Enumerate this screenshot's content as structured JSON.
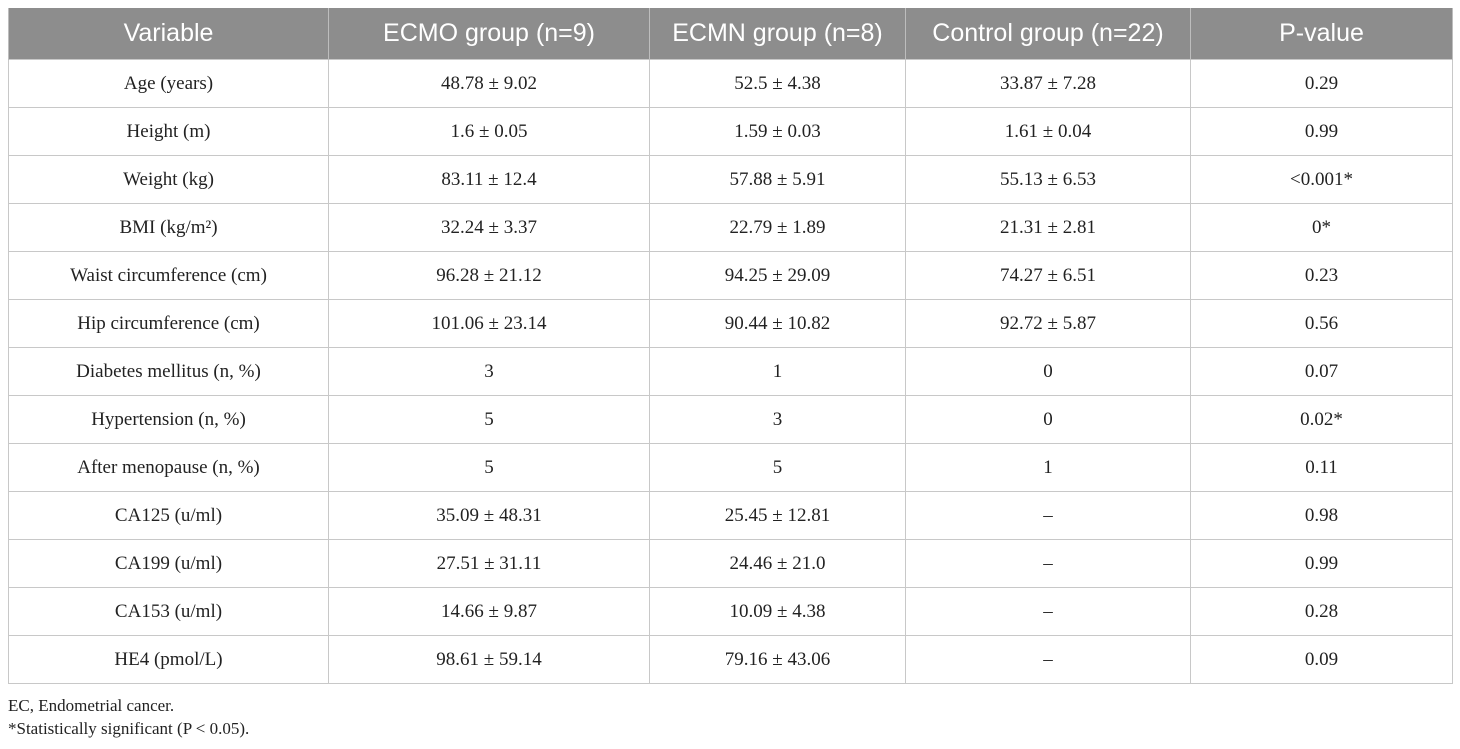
{
  "table": {
    "headers": [
      "Variable",
      "ECMO group (n=9)",
      "ECMN group (n=8)",
      "Control group (n=22)",
      "P-value"
    ],
    "rows": [
      [
        "Age (years)",
        "48.78 ± 9.02",
        "52.5 ± 4.38",
        "33.87 ± 7.28",
        "0.29"
      ],
      [
        "Height (m)",
        "1.6 ± 0.05",
        "1.59 ± 0.03",
        "1.61 ± 0.04",
        "0.99"
      ],
      [
        "Weight (kg)",
        "83.11 ± 12.4",
        "57.88 ± 5.91",
        "55.13 ± 6.53",
        "<0.001*"
      ],
      [
        "BMI (kg/m²)",
        "32.24 ± 3.37",
        "22.79 ± 1.89",
        "21.31 ± 2.81",
        "0*"
      ],
      [
        "Waist circumference (cm)",
        "96.28 ± 21.12",
        "94.25 ± 29.09",
        "74.27 ± 6.51",
        "0.23"
      ],
      [
        "Hip circumference (cm)",
        "101.06 ± 23.14",
        "90.44 ± 10.82",
        "92.72 ± 5.87",
        "0.56"
      ],
      [
        "Diabetes mellitus (n, %)",
        "3",
        "1",
        "0",
        "0.07"
      ],
      [
        "Hypertension (n, %)",
        "5",
        "3",
        "0",
        "0.02*"
      ],
      [
        "After menopause (n, %)",
        "5",
        "5",
        "1",
        "0.11"
      ],
      [
        "CA125 (u/ml)",
        "35.09 ± 48.31",
        "25.45 ± 12.81",
        "–",
        "0.98"
      ],
      [
        "CA199 (u/ml)",
        "27.51 ± 31.11",
        "24.46 ± 21.0",
        "–",
        "0.99"
      ],
      [
        "CA153 (u/ml)",
        "14.66 ± 9.87",
        "10.09 ± 4.38",
        "–",
        "0.28"
      ],
      [
        "HE4 (pmol/L)",
        "98.61 ± 59.14",
        "79.16 ± 43.06",
        "–",
        "0.09"
      ]
    ]
  },
  "footnotes": {
    "abbreviation": "EC, Endometrial cancer.",
    "significance": "*Statistically significant (P < 0.05)."
  },
  "colors": {
    "header_bg": "#8d8d8d",
    "header_text": "#ffffff",
    "grid": "#c8c8c8"
  }
}
